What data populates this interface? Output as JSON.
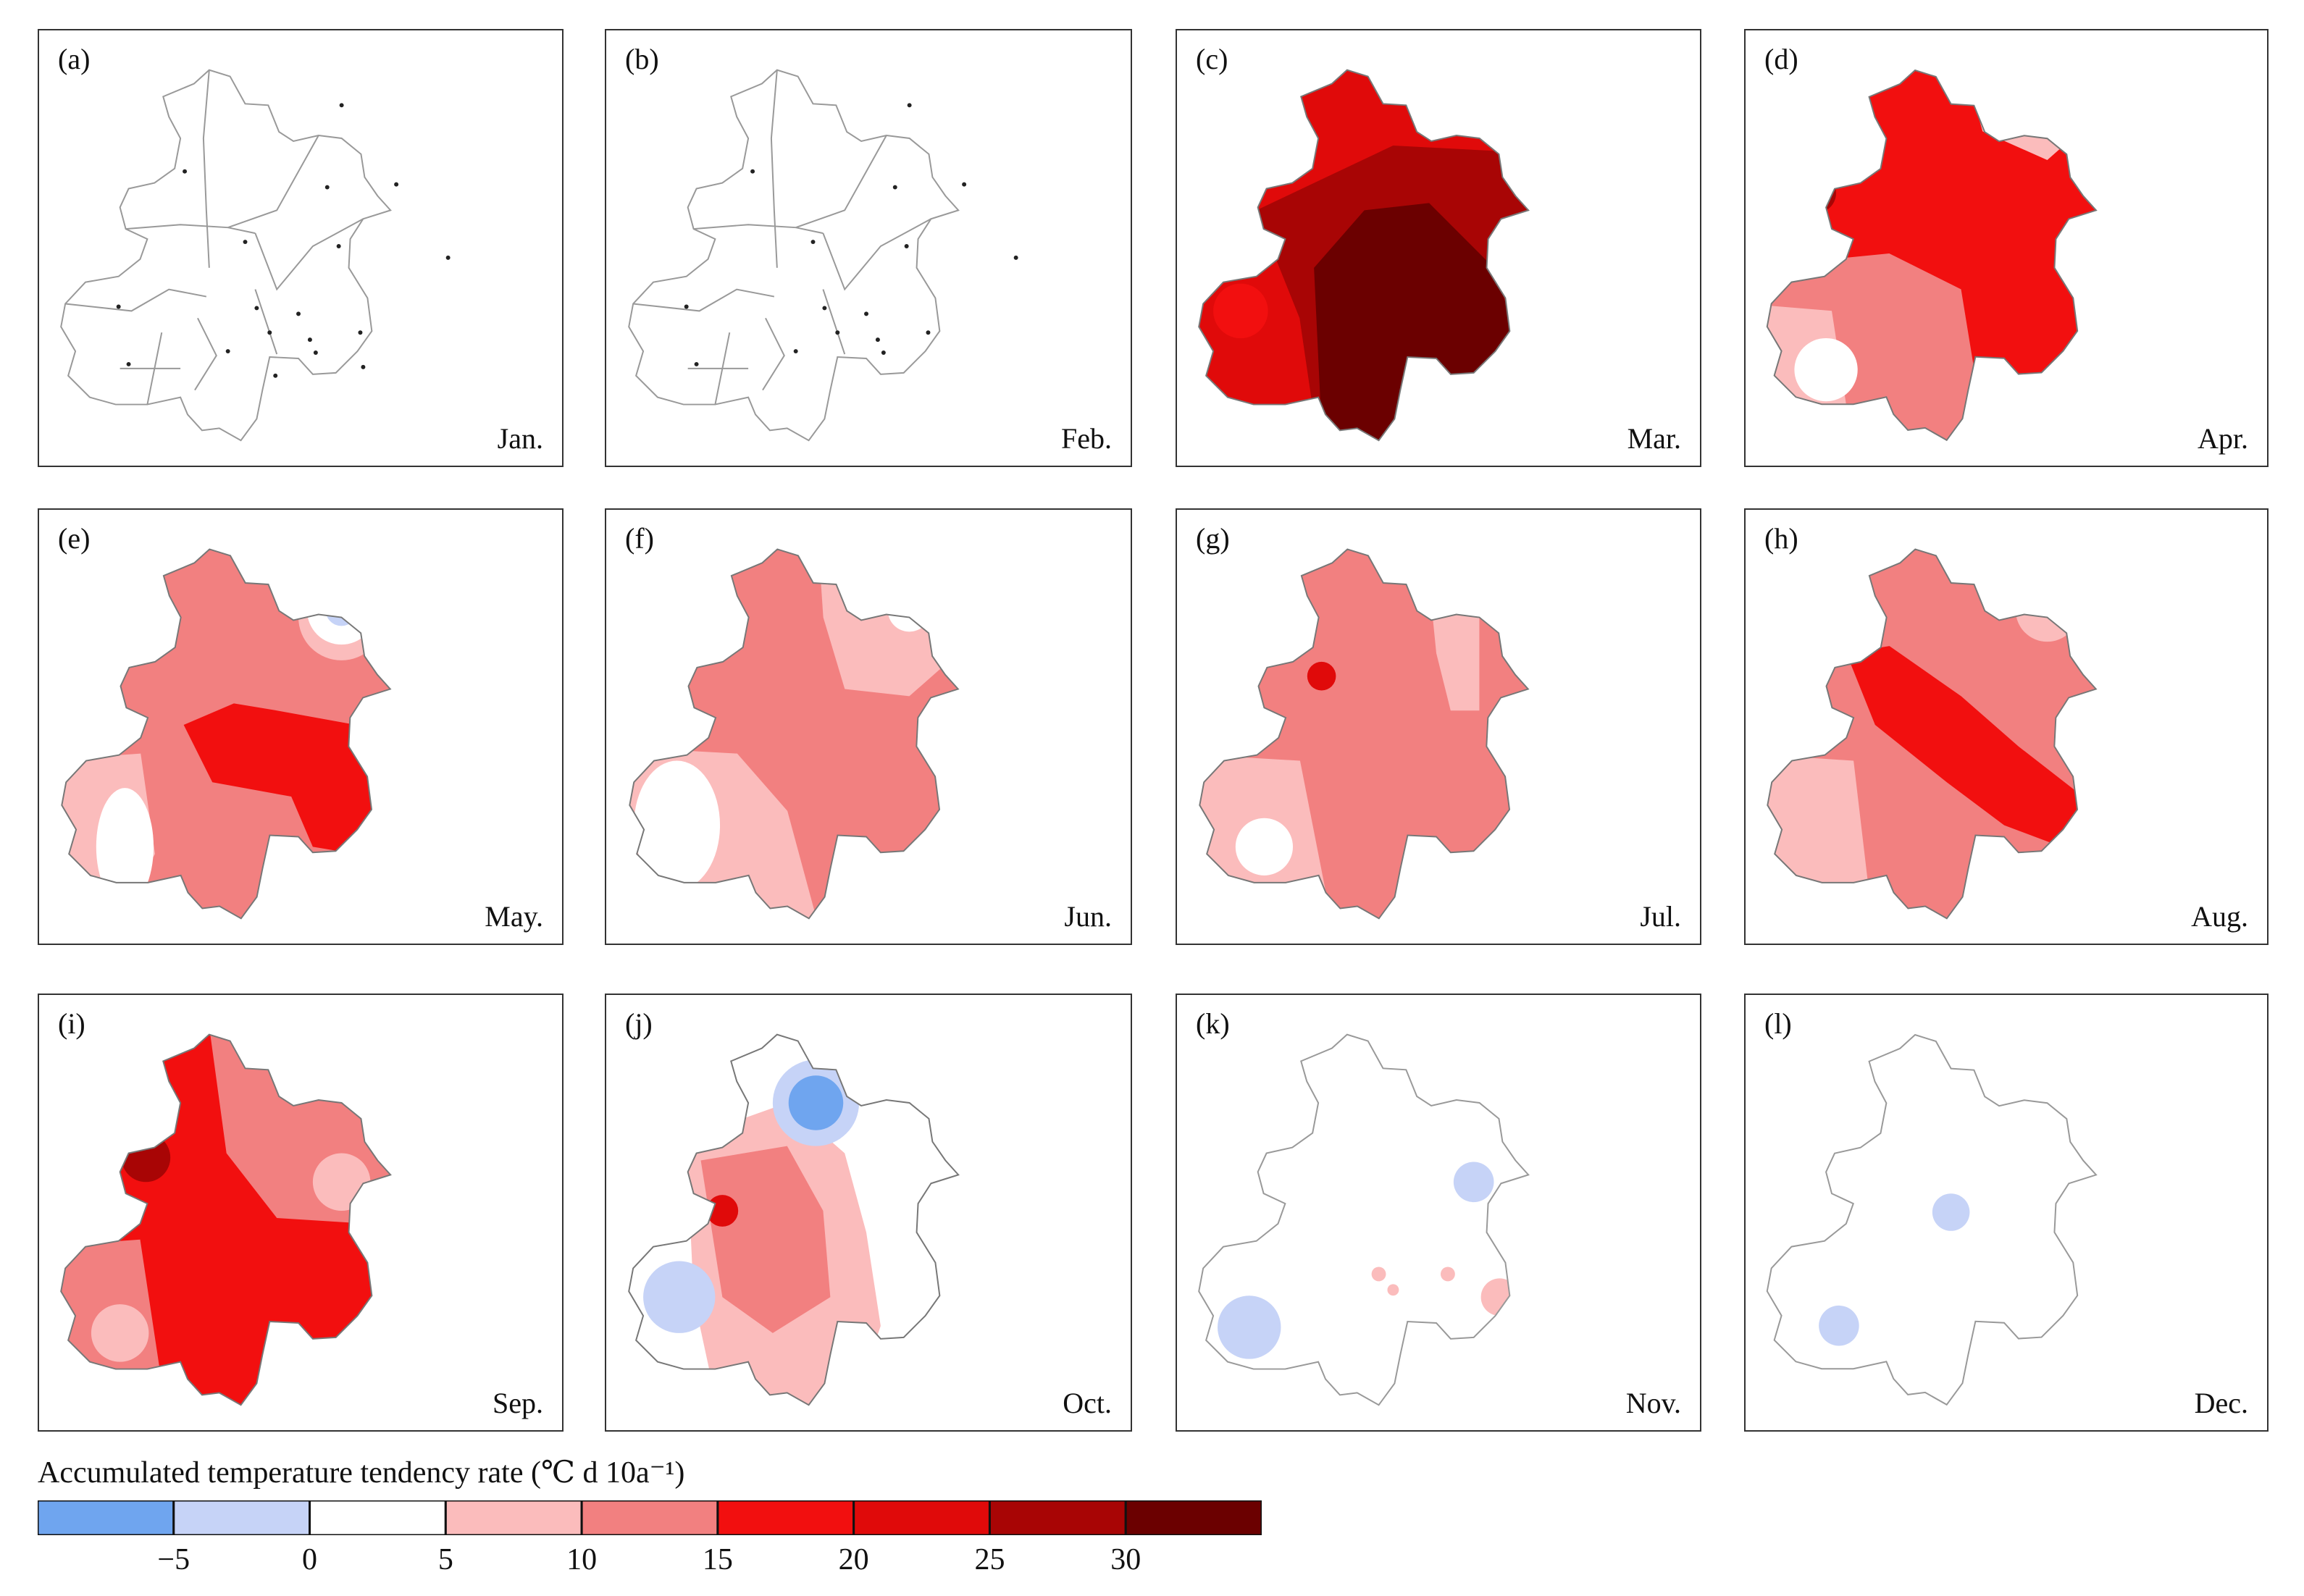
{
  "panels": [
    {
      "id": "a",
      "label": "(a)",
      "month": "Jan."
    },
    {
      "id": "b",
      "label": "(b)",
      "month": "Feb."
    },
    {
      "id": "c",
      "label": "(c)",
      "month": "Mar."
    },
    {
      "id": "d",
      "label": "(d)",
      "month": "Apr."
    },
    {
      "id": "e",
      "label": "(e)",
      "month": "May."
    },
    {
      "id": "f",
      "label": "(f)",
      "month": "Jun."
    },
    {
      "id": "g",
      "label": "(g)",
      "month": "Jul."
    },
    {
      "id": "h",
      "label": "(h)",
      "month": "Aug."
    },
    {
      "id": "i",
      "label": "(i)",
      "month": "Sep."
    },
    {
      "id": "j",
      "label": "(j)",
      "month": "Oct."
    },
    {
      "id": "k",
      "label": "(k)",
      "month": "Nov."
    },
    {
      "id": "l",
      "label": "(l)",
      "month": "Dec."
    }
  ],
  "colorbar": {
    "title": "Accumulated temperature tendency rate (℃ d 10a⁻¹)",
    "ticks": [
      "−5",
      "0",
      "5",
      "10",
      "15",
      "20",
      "25",
      "30"
    ],
    "bin_colors": [
      "#6fa5ef",
      "#c6d3f7",
      "#ffffff",
      "#fbbcbc",
      "#f28080",
      "#f20f0f",
      "#e00a0a",
      "#a80505",
      "#6b0000"
    ]
  }
}
